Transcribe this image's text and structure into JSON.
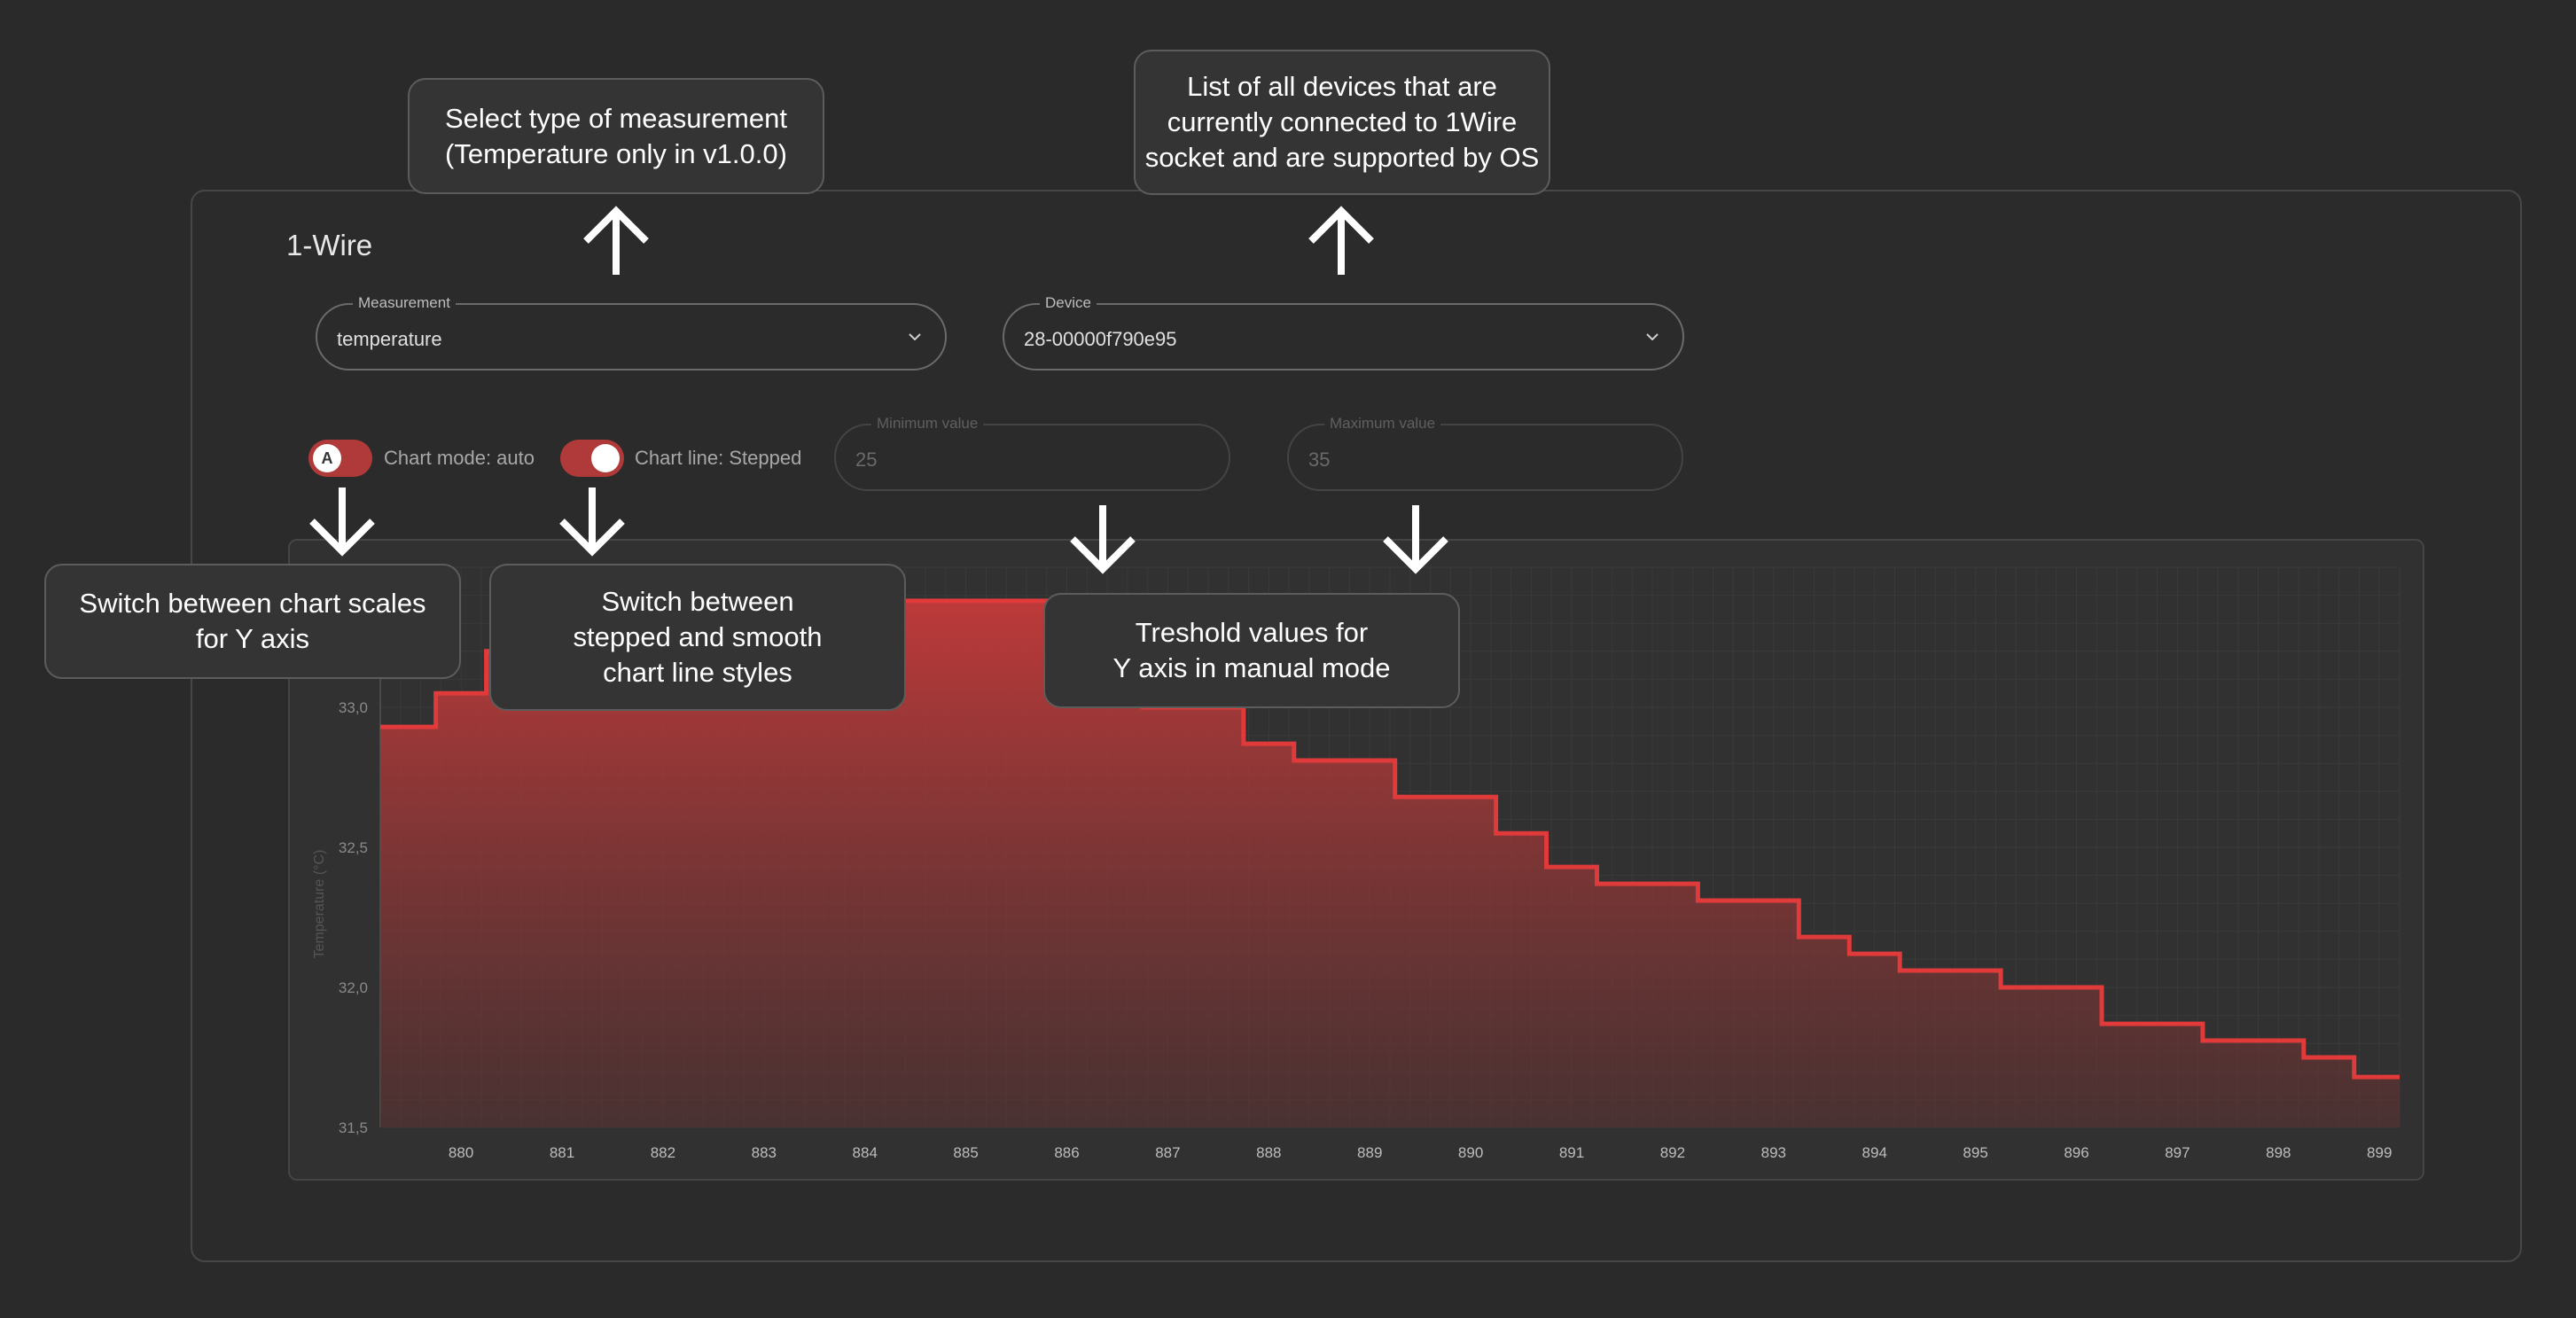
{
  "panel": {
    "title": "1-Wire"
  },
  "measurement": {
    "label": "Measurement",
    "value": "temperature",
    "icon": "chevron-down-icon"
  },
  "device": {
    "label": "Device",
    "value": "28-00000f790e95",
    "icon": "chevron-down-icon"
  },
  "chart_mode": {
    "knob_text": "A",
    "label": "Chart mode: auto",
    "on": true
  },
  "chart_line": {
    "label": "Chart line: Stepped",
    "on": true
  },
  "min_value": {
    "label": "Minimum value",
    "value": "25"
  },
  "max_value": {
    "label": "Maximum value",
    "value": "35"
  },
  "callouts": {
    "measurement": "Select type of measurement\n(Temperature only in v1.0.0)",
    "devices": "List of all devices that are\ncurrently connected to 1Wire\nsocket and are supported by OS",
    "scale": "Switch between chart scales\nfor Y axis",
    "line_style": "Switch between\nstepped and smooth\nchart line styles",
    "threshold": "Treshold values for\nY axis in manual mode"
  },
  "colors": {
    "accent": "#e03a3a",
    "accent_dark": "#b03a3a",
    "background": "#2a2a2a"
  },
  "chart_data": {
    "type": "area",
    "step": true,
    "ylabel": "Temperature (°C)",
    "ylim": [
      31.5,
      33.5
    ],
    "yticks": [
      "31,5",
      "32,0",
      "32,5",
      "33,0"
    ],
    "ytick_values": [
      31.5,
      32.0,
      32.5,
      33.0
    ],
    "xlim": [
      879.2,
      899.2
    ],
    "xticks": [
      "880",
      "881",
      "882",
      "883",
      "884",
      "885",
      "886",
      "887",
      "888",
      "889",
      "890",
      "891",
      "892",
      "893",
      "894",
      "895",
      "896",
      "897",
      "898",
      "899"
    ],
    "xtick_values": [
      880,
      881,
      882,
      883,
      884,
      885,
      886,
      887,
      888,
      889,
      890,
      891,
      892,
      893,
      894,
      895,
      896,
      897,
      898,
      899
    ],
    "grid": true,
    "series": [
      {
        "x": [
          879.2,
          879.75,
          880.25,
          880.75,
          881.25,
          881.75,
          882.25,
          882.75,
          883.25,
          883.75,
          884.25,
          884.75,
          885.25,
          885.75,
          886.25,
          886.75,
          887.25,
          887.75,
          888.25,
          888.75,
          889.25,
          889.75,
          890.25,
          890.75,
          891.25,
          891.75,
          892.25,
          892.75,
          893.25,
          893.75,
          894.25,
          894.75,
          895.25,
          895.75,
          896.25,
          896.75,
          897.25,
          897.75,
          898.25,
          898.75,
          899.25
        ],
        "y": [
          32.93,
          33.05,
          33.2,
          33.25,
          33.3,
          33.3,
          33.35,
          33.35,
          33.38,
          33.38,
          33.38,
          33.38,
          33.38,
          33.38,
          33.13,
          33.0,
          33.0,
          32.87,
          32.81,
          32.81,
          32.68,
          32.68,
          32.55,
          32.43,
          32.37,
          32.37,
          32.31,
          32.31,
          32.18,
          32.12,
          32.06,
          32.06,
          32.0,
          32.0,
          31.87,
          31.87,
          31.81,
          31.81,
          31.75,
          31.68,
          31.68
        ]
      }
    ]
  }
}
